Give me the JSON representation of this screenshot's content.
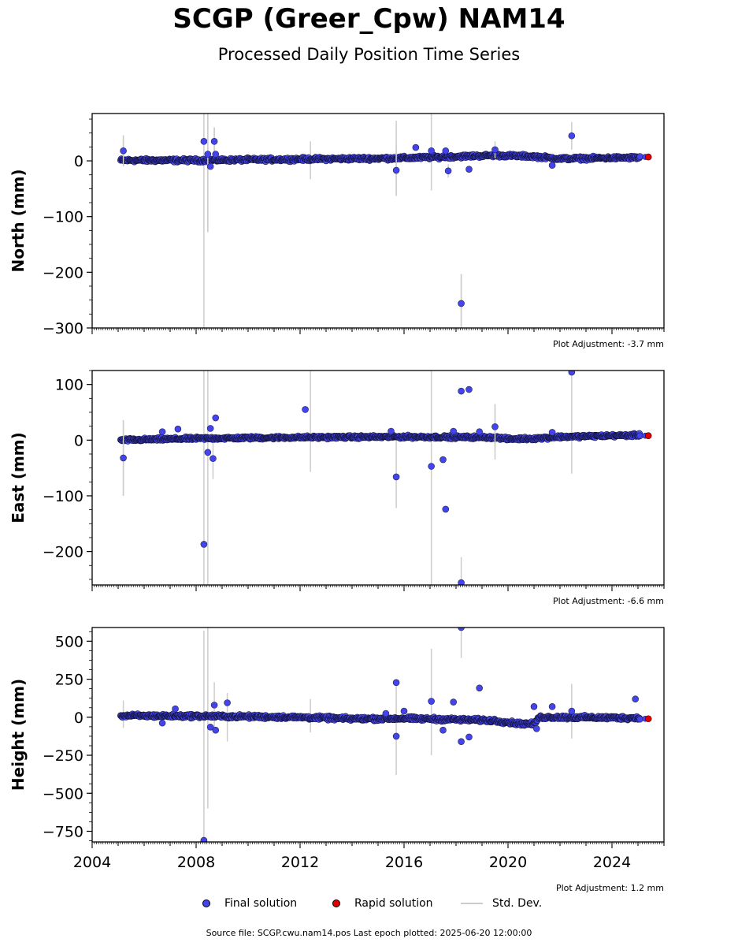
{
  "figure": {
    "title": "SCGP (Greer_Cpw) NAM14",
    "subtitle": "Processed Daily Position Time Series",
    "source_note": "Source file: SCGP.cwu.nam14.pos  Last epoch plotted: 2025-06-20 12:00:00"
  },
  "legend": {
    "final_label": "Final solution",
    "rapid_label": "Rapid solution",
    "std_label": "Std. Dev.",
    "final_color": "#4444ee",
    "rapid_color": "#e00000",
    "std_color": "#cccccc"
  },
  "chart_data": [
    {
      "type": "scatter",
      "ylabel": "North (mm)",
      "ylim": [
        -300,
        85
      ],
      "yticks": [
        0,
        -100,
        -200,
        -300
      ],
      "yticklabels": [
        "0",
        "−100",
        "−200",
        "−300"
      ],
      "xlim": [
        2004,
        2026
      ],
      "adjustment": "Plot Adjustment: -3.7 mm",
      "baseline": [
        [
          2005.1,
          1
        ],
        [
          2008,
          1
        ],
        [
          2012,
          3
        ],
        [
          2016,
          5
        ],
        [
          2019.5,
          10
        ],
        [
          2021,
          8
        ],
        [
          2022,
          4
        ],
        [
          2025.1,
          6
        ]
      ],
      "noise": 2.5,
      "outliers": [
        {
          "x": 2005.2,
          "y": 18,
          "err": 28
        },
        {
          "x": 2008.3,
          "y": 35,
          "err": 0
        },
        {
          "x": 2008.45,
          "y": 12,
          "err": 140
        },
        {
          "x": 2008.55,
          "y": -10,
          "err": 0
        },
        {
          "x": 2008.7,
          "y": 35,
          "err": 25
        },
        {
          "x": 2008.75,
          "y": 12,
          "err": 0
        },
        {
          "x": 2015.7,
          "y": -17,
          "err": 45
        },
        {
          "x": 2016.45,
          "y": 24,
          "err": 0
        },
        {
          "x": 2017.05,
          "y": 18,
          "err": 0
        },
        {
          "x": 2017.6,
          "y": 18,
          "err": 0
        },
        {
          "x": 2017.7,
          "y": -18,
          "err": 12
        },
        {
          "x": 2018.2,
          "y": -256,
          "err": 52
        },
        {
          "x": 2018.5,
          "y": -15,
          "err": 0
        },
        {
          "x": 2019.5,
          "y": 20,
          "err": 15
        },
        {
          "x": 2021.7,
          "y": -8,
          "err": 0
        },
        {
          "x": 2022.45,
          "y": 45,
          "err": 25
        }
      ],
      "std_lines": [
        {
          "x": 2005.2,
          "lo": 5,
          "hi": 45
        },
        {
          "x": 2008.3,
          "lo": -300,
          "hi": 85
        },
        {
          "x": 2008.45,
          "lo": -128,
          "hi": 85
        },
        {
          "x": 2008.7,
          "lo": -5,
          "hi": 60
        },
        {
          "x": 2012.4,
          "lo": -33,
          "hi": 35
        },
        {
          "x": 2015.7,
          "lo": -63,
          "hi": 72
        },
        {
          "x": 2017.05,
          "lo": -53,
          "hi": 85
        },
        {
          "x": 2018.2,
          "lo": -300,
          "hi": -203
        }
      ],
      "rapid": [
        {
          "x": 2025.4,
          "y": 7
        }
      ]
    },
    {
      "type": "scatter",
      "ylabel": "East (mm)",
      "ylim": [
        -260,
        125
      ],
      "yticks": [
        100,
        0,
        -100,
        -200
      ],
      "yticklabels": [
        "100",
        "0",
        "−100",
        "−200"
      ],
      "xlim": [
        2004,
        2026
      ],
      "adjustment": "Plot Adjustment: -6.6 mm",
      "baseline": [
        [
          2005.1,
          0
        ],
        [
          2008,
          3
        ],
        [
          2012,
          5
        ],
        [
          2016,
          6
        ],
        [
          2019.5,
          5
        ],
        [
          2020,
          2
        ],
        [
          2021,
          3
        ],
        [
          2022,
          6
        ],
        [
          2025.1,
          9
        ]
      ],
      "noise": 2.2,
      "outliers": [
        {
          "x": 2005.2,
          "y": -32,
          "err": 68
        },
        {
          "x": 2006.7,
          "y": 15,
          "err": 0
        },
        {
          "x": 2007.3,
          "y": 20,
          "err": 0
        },
        {
          "x": 2008.3,
          "y": -187,
          "err": 0
        },
        {
          "x": 2008.45,
          "y": -22,
          "err": 0
        },
        {
          "x": 2008.55,
          "y": 21,
          "err": 0
        },
        {
          "x": 2008.65,
          "y": -33,
          "err": 0
        },
        {
          "x": 2008.75,
          "y": 40,
          "err": 0
        },
        {
          "x": 2012.2,
          "y": 55,
          "err": 0
        },
        {
          "x": 2015.5,
          "y": 16,
          "err": 0
        },
        {
          "x": 2015.7,
          "y": -66,
          "err": 0
        },
        {
          "x": 2017.05,
          "y": -47,
          "err": 0
        },
        {
          "x": 2017.5,
          "y": -35,
          "err": 0
        },
        {
          "x": 2017.6,
          "y": -124,
          "err": 0
        },
        {
          "x": 2017.9,
          "y": 16,
          "err": 0
        },
        {
          "x": 2018.2,
          "y": 88,
          "err": 0
        },
        {
          "x": 2018.2,
          "y": -256,
          "err": 0
        },
        {
          "x": 2018.5,
          "y": 91,
          "err": 0
        },
        {
          "x": 2018.9,
          "y": 15,
          "err": 0
        },
        {
          "x": 2019.5,
          "y": 24,
          "err": 40
        },
        {
          "x": 2021.7,
          "y": 14,
          "err": 0
        },
        {
          "x": 2022.45,
          "y": 122,
          "err": 0
        }
      ],
      "std_lines": [
        {
          "x": 2005.2,
          "lo": -100,
          "hi": 35
        },
        {
          "x": 2008.3,
          "lo": -260,
          "hi": 125
        },
        {
          "x": 2008.45,
          "lo": -260,
          "hi": 125
        },
        {
          "x": 2008.65,
          "lo": -70,
          "hi": 0
        },
        {
          "x": 2012.4,
          "lo": -57,
          "hi": 125
        },
        {
          "x": 2015.7,
          "lo": -122,
          "hi": 0
        },
        {
          "x": 2017.05,
          "lo": -260,
          "hi": 125
        },
        {
          "x": 2018.2,
          "lo": -260,
          "hi": -210
        },
        {
          "x": 2022.45,
          "lo": -60,
          "hi": 125
        },
        {
          "x": 2019.5,
          "lo": -35,
          "hi": 65
        }
      ],
      "rapid": [
        {
          "x": 2025.4,
          "y": 8
        }
      ]
    },
    {
      "type": "scatter",
      "ylabel": "Height (mm)",
      "ylim": [
        -820,
        590
      ],
      "yticks": [
        500,
        250,
        0,
        -250,
        -500,
        -750
      ],
      "yticklabels": [
        "500",
        "250",
        "0",
        "−250",
        "−500",
        "−750"
      ],
      "xlim": [
        2004,
        2026
      ],
      "xticks": [
        2004,
        2008,
        2012,
        2016,
        2020,
        2024
      ],
      "xticklabels": [
        "2004",
        "2008",
        "2012",
        "2016",
        "2020",
        "2024"
      ],
      "adjustment": "Plot Adjustment: 1.2 mm",
      "baseline": [
        [
          2005.1,
          10
        ],
        [
          2008,
          8
        ],
        [
          2012,
          0
        ],
        [
          2014,
          -10
        ],
        [
          2016,
          -8
        ],
        [
          2018,
          -15
        ],
        [
          2019.5,
          -22
        ],
        [
          2020.3,
          -40
        ],
        [
          2021,
          -45
        ],
        [
          2021.2,
          0
        ],
        [
          2022,
          0
        ],
        [
          2025.1,
          -5
        ]
      ],
      "noise": 10,
      "outliers": [
        {
          "x": 2006.7,
          "y": -38,
          "err": 0
        },
        {
          "x": 2007.2,
          "y": 55,
          "err": 0
        },
        {
          "x": 2008.3,
          "y": -810,
          "err": 0
        },
        {
          "x": 2008.55,
          "y": -65,
          "err": 0
        },
        {
          "x": 2008.7,
          "y": 80,
          "err": 0
        },
        {
          "x": 2008.75,
          "y": -85,
          "err": 0
        },
        {
          "x": 2009.2,
          "y": 95,
          "err": 0
        },
        {
          "x": 2015.3,
          "y": 25,
          "err": 0
        },
        {
          "x": 2015.7,
          "y": 228,
          "err": 0
        },
        {
          "x": 2015.7,
          "y": -125,
          "err": 0
        },
        {
          "x": 2016.0,
          "y": 40,
          "err": 0
        },
        {
          "x": 2017.05,
          "y": 105,
          "err": 0
        },
        {
          "x": 2017.5,
          "y": -85,
          "err": 0
        },
        {
          "x": 2017.9,
          "y": 100,
          "err": 0
        },
        {
          "x": 2018.2,
          "y": 590,
          "err": 0
        },
        {
          "x": 2018.2,
          "y": -160,
          "err": 0
        },
        {
          "x": 2018.5,
          "y": -130,
          "err": 0
        },
        {
          "x": 2018.9,
          "y": 192,
          "err": 0
        },
        {
          "x": 2021.0,
          "y": 70,
          "err": 0
        },
        {
          "x": 2021.1,
          "y": -75,
          "err": 0
        },
        {
          "x": 2021.7,
          "y": 70,
          "err": 0
        },
        {
          "x": 2022.45,
          "y": 40,
          "err": 0
        },
        {
          "x": 2024.9,
          "y": 120,
          "err": 0
        }
      ],
      "std_lines": [
        {
          "x": 2005.2,
          "lo": -70,
          "hi": 110
        },
        {
          "x": 2008.3,
          "lo": -820,
          "hi": 570
        },
        {
          "x": 2008.45,
          "lo": -600,
          "hi": 590
        },
        {
          "x": 2008.7,
          "lo": -100,
          "hi": 230
        },
        {
          "x": 2009.2,
          "lo": -160,
          "hi": 160
        },
        {
          "x": 2012.4,
          "lo": -100,
          "hi": 120
        },
        {
          "x": 2015.7,
          "lo": -380,
          "hi": 220
        },
        {
          "x": 2017.05,
          "lo": -250,
          "hi": 450
        },
        {
          "x": 2018.2,
          "lo": 390,
          "hi": 590
        },
        {
          "x": 2022.45,
          "lo": -140,
          "hi": 220
        }
      ],
      "rapid": [
        {
          "x": 2025.4,
          "y": -10
        }
      ]
    }
  ]
}
